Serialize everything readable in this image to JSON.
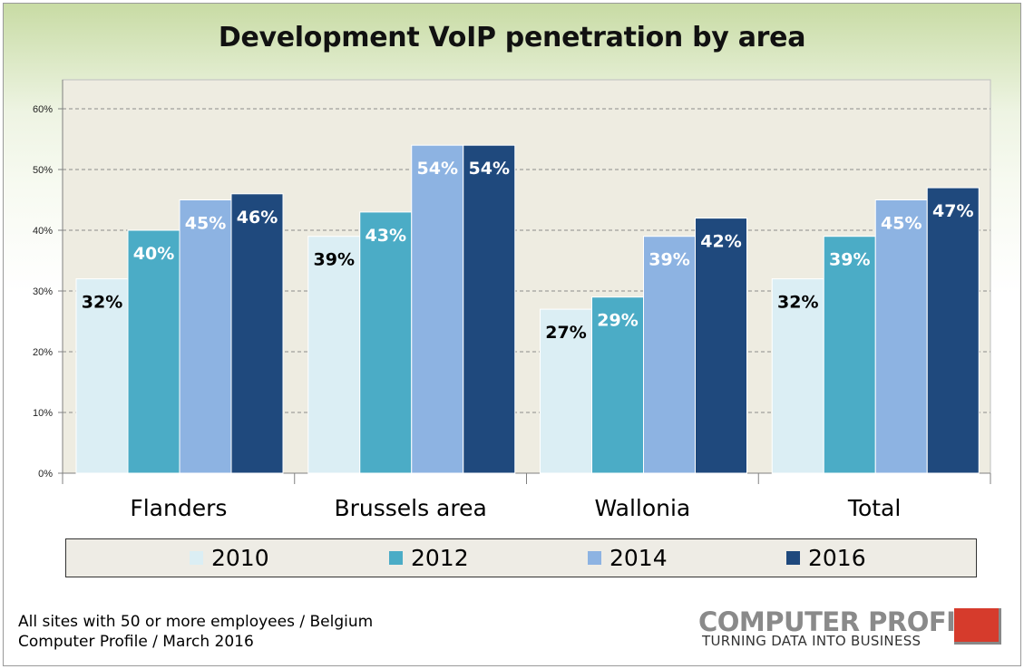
{
  "chart_data": {
    "type": "bar",
    "title": "Development VoIP penetration by area",
    "categories": [
      "Flanders",
      "Brussels area",
      "Wallonia",
      "Total"
    ],
    "series": [
      {
        "name": "2010",
        "color": "#dbeef4",
        "label_color": "#000000",
        "values": [
          32,
          39,
          27,
          32
        ],
        "labels": [
          "32%",
          "39%",
          "27%",
          "32%"
        ]
      },
      {
        "name": "2012",
        "color": "#4bacc6",
        "label_color": "#ffffff",
        "values": [
          40,
          43,
          29,
          39
        ],
        "labels": [
          "40%",
          "43%",
          "29%",
          "39%"
        ]
      },
      {
        "name": "2014",
        "color": "#8db3e2",
        "label_color": "#ffffff",
        "values": [
          45,
          54,
          39,
          45
        ],
        "labels": [
          "45%",
          "54%",
          "39%",
          "45%"
        ]
      },
      {
        "name": "2016",
        "color": "#1f497d",
        "label_color": "#ffffff",
        "values": [
          46,
          54,
          42,
          47
        ],
        "labels": [
          "46%",
          "54%",
          "42%",
          "47%"
        ]
      }
    ],
    "ylim": [
      0,
      60
    ],
    "yticks": [
      0,
      10,
      20,
      30,
      40,
      50,
      60
    ],
    "ytick_labels": [
      "0%",
      "10%",
      "20%",
      "30%",
      "40%",
      "50%",
      "60%"
    ],
    "grid": true,
    "legend": "bottom",
    "plot_background": "#eeece1"
  },
  "footnote": {
    "line1": "All sites with 50 or more employees / Belgium",
    "line2": "Computer Profile / March 2016"
  },
  "logo": {
    "name": "COMPUTER PROFILE",
    "tagline": "TURNING DATA INTO BUSINESS"
  }
}
